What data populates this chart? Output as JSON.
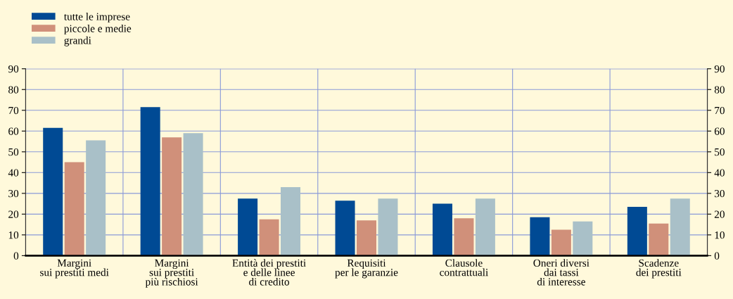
{
  "chart_data": {
    "type": "bar",
    "categories": [
      "Margini\nsui prestiti medi",
      "Margini\nsui prestiti\npiù rischiosi",
      "Entità dei prestiti\ne delle linee\ndi credito",
      "Requisiti\nper le garanzie",
      "Clausole\ncontrattuali",
      "Oneri diversi\ndai tassi\ndi interesse",
      "Scadenze\ndei prestiti"
    ],
    "series": [
      {
        "name": "tutte le imprese",
        "color": "#004a94",
        "values": [
          61.5,
          71.5,
          27.5,
          26.5,
          25,
          18.5,
          23.5
        ]
      },
      {
        "name": "piccole e medie",
        "color": "#d0907a",
        "values": [
          45,
          57,
          17.5,
          17,
          18,
          12.5,
          15.5
        ]
      },
      {
        "name": "grandi",
        "color": "#a9c0c8",
        "values": [
          55.5,
          59,
          33,
          27.5,
          27.5,
          16.5,
          27.5
        ]
      }
    ],
    "ylim": [
      0,
      90
    ],
    "yticks": [
      0,
      10,
      20,
      30,
      40,
      50,
      60,
      70,
      80,
      90
    ],
    "y2lim": [
      0,
      90
    ],
    "y2ticks": [
      0,
      10,
      20,
      30,
      40,
      50,
      60,
      70,
      80,
      90
    ],
    "grid": true,
    "legend": "top left"
  }
}
